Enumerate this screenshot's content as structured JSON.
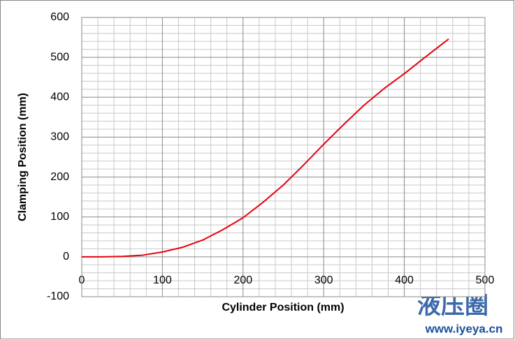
{
  "chart_data": {
    "type": "line",
    "xlabel": "Cylinder Position (mm)",
    "ylabel": "Clamping Position (mm)",
    "x": [
      0,
      25,
      50,
      75,
      100,
      125,
      150,
      175,
      200,
      225,
      250,
      275,
      300,
      325,
      350,
      375,
      400,
      425,
      455
    ],
    "series": [
      {
        "name": "Clamping Position",
        "color": "#e8000b",
        "values": [
          0,
          0,
          1,
          4,
          12,
          24,
          42,
          68,
          98,
          137,
          180,
          230,
          282,
          332,
          380,
          422,
          459,
          499,
          546
        ]
      }
    ],
    "xlim": [
      0,
      500
    ],
    "xticks": [
      0,
      100,
      200,
      300,
      400,
      500
    ],
    "ylim": [
      -100,
      600
    ],
    "yticks": [
      -100,
      0,
      100,
      200,
      300,
      400,
      500,
      600
    ],
    "grid": true,
    "watermark": "液压圈",
    "watermark_url": "www.iyeya.cn"
  }
}
